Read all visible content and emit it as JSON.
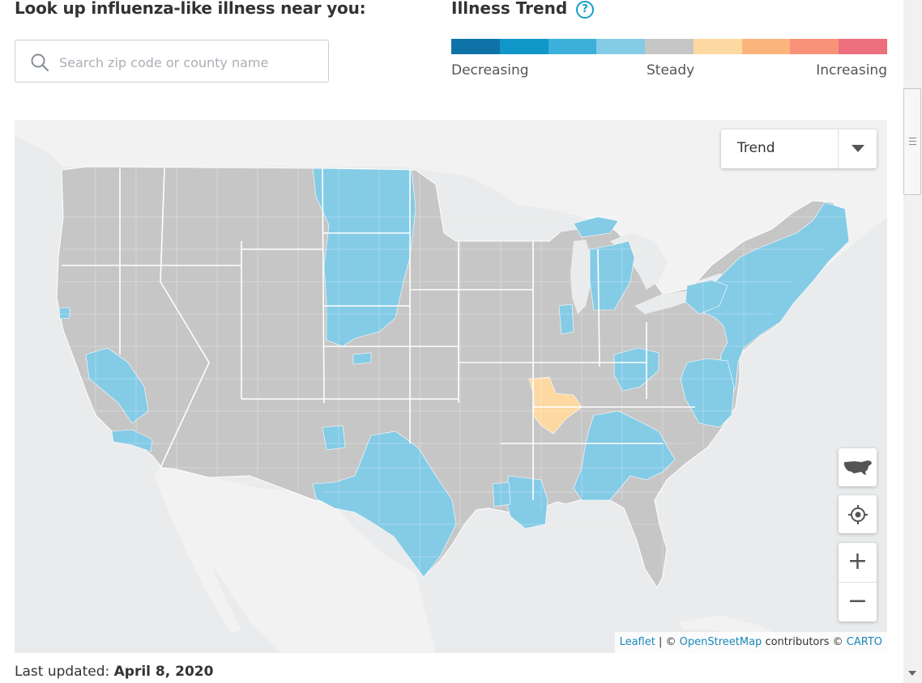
{
  "lookup": {
    "heading": "Look up influenza-like illness near you:",
    "search_placeholder": "Search zip code or county name",
    "search_value": "",
    "search_icon": "search-icon"
  },
  "legend": {
    "title": "Illness Trend",
    "help_label": "?",
    "help_icon": "help-circle-icon",
    "colors": [
      "#0f73a8",
      "#1196c9",
      "#3cb0db",
      "#84cbe6",
      "#c6c6c6",
      "#fdd9a1",
      "#fcb47c",
      "#f8937a",
      "#ed6e7c"
    ],
    "labels": {
      "low": "Decreasing",
      "mid": "Steady",
      "high": "Increasing"
    }
  },
  "map": {
    "layer_select": {
      "value": "Trend",
      "icon": "chevron-down-icon"
    },
    "controls": {
      "us_view_icon": "usa-map-icon",
      "locate_icon": "crosshair-icon",
      "zoom_in_label": "+",
      "zoom_out_label": "−"
    },
    "attribution": {
      "leaflet": "Leaflet",
      "sep": "| ©",
      "osm": "OpenStreetMap",
      "contributors": "contributors ©",
      "carto": "CARTO"
    },
    "colors": {
      "steady": "#c6c6c6",
      "decreasing": "#84cbe6",
      "increasing": "#fdd9a1",
      "land": "#f2f2f2",
      "water": "#e9ebec"
    }
  },
  "footer": {
    "label": "Last updated:",
    "date": "April 8, 2020"
  }
}
